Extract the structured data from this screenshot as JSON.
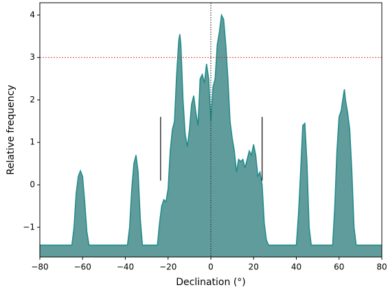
{
  "chart_data": {
    "type": "area",
    "xlabel": "Declination (°)",
    "ylabel": "Relative frequency",
    "x": [
      -80,
      -65,
      -64,
      -63,
      -62,
      -61,
      -60,
      -59,
      -58,
      -57,
      -39,
      -38,
      -37,
      -36,
      -35,
      -34,
      -33,
      -32,
      -25,
      -24,
      -23,
      -22,
      -21,
      -20,
      -19,
      -18,
      -17,
      -16,
      -15,
      -14.5,
      -14,
      -13,
      -12,
      -11,
      -10,
      -9,
      -8,
      -7,
      -6,
      -5,
      -4,
      -3,
      -2,
      -1,
      0,
      1,
      2,
      3,
      4,
      5,
      6,
      7,
      8,
      9,
      10,
      11,
      12,
      13,
      14,
      15,
      16,
      17,
      18,
      19,
      20,
      21,
      22,
      23,
      24,
      25,
      26,
      27,
      40,
      41,
      42,
      43,
      44,
      45,
      46,
      47,
      57,
      58,
      59,
      60,
      61,
      62,
      62.5,
      63,
      64,
      65,
      66,
      67,
      68,
      80
    ],
    "values": [
      -1.42,
      -1.42,
      -1.0,
      -0.2,
      0.2,
      0.33,
      0.2,
      -0.4,
      -1.1,
      -1.42,
      -1.42,
      -1.0,
      -0.1,
      0.5,
      0.7,
      0.3,
      -0.8,
      -1.42,
      -1.42,
      -0.9,
      -0.5,
      -0.35,
      -0.4,
      -0.1,
      0.8,
      1.3,
      1.5,
      2.6,
      3.4,
      3.55,
      3.3,
      2.0,
      1.2,
      0.9,
      1.3,
      1.9,
      2.1,
      1.7,
      1.4,
      2.5,
      2.6,
      2.4,
      2.85,
      2.5,
      1.5,
      2.3,
      2.5,
      3.3,
      3.6,
      4.0,
      3.9,
      3.3,
      2.5,
      1.5,
      1.1,
      0.8,
      0.3,
      0.6,
      0.55,
      0.6,
      0.4,
      0.6,
      0.8,
      0.7,
      0.95,
      0.7,
      0.2,
      0.3,
      0.0,
      -0.9,
      -1.3,
      -1.42,
      -1.42,
      -0.7,
      0.3,
      1.4,
      1.45,
      0.5,
      -1.0,
      -1.42,
      -1.42,
      -0.5,
      0.8,
      1.6,
      1.75,
      2.1,
      2.25,
      2.0,
      1.7,
      1.3,
      0.3,
      -1.0,
      -1.42,
      -1.42
    ],
    "color": "#5f9c9b",
    "line_color": "#1f8a8a",
    "xlim": [
      -80,
      80
    ],
    "ylim": [
      -1.7,
      4.29
    ],
    "xticks": [
      {
        "value": -80,
        "label": "−80"
      },
      {
        "value": -60,
        "label": "−60"
      },
      {
        "value": -40,
        "label": "−40"
      },
      {
        "value": -20,
        "label": "−20"
      },
      0,
      20,
      40,
      60,
      80
    ],
    "yticks": [
      {
        "value": -1,
        "label": "−1"
      },
      0,
      1,
      2,
      3,
      4
    ],
    "hline": 3,
    "vline": 0,
    "segments": [
      {
        "x": -23.5,
        "y": [
          0.1,
          1.6
        ]
      },
      {
        "x": 24,
        "y": [
          0.1,
          1.6
        ]
      }
    ]
  }
}
